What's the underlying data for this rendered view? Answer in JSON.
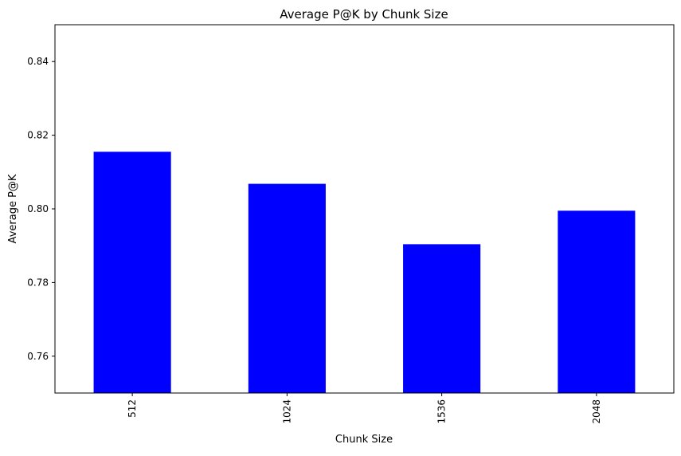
{
  "chart_data": {
    "type": "bar",
    "title": "Average P@K by Chunk Size",
    "xlabel": "Chunk Size",
    "ylabel": "Average P@K",
    "categories": [
      "512",
      "1024",
      "1536",
      "2048"
    ],
    "values": [
      0.8155,
      0.8068,
      0.7904,
      0.7995
    ],
    "ylim": [
      0.75,
      0.85
    ],
    "yticks": [
      0.76,
      0.78,
      0.8,
      0.82,
      0.84
    ],
    "ytick_labels": [
      "0.76",
      "0.78",
      "0.80",
      "0.82",
      "0.84"
    ],
    "bar_color": "#0000ff",
    "grid": false,
    "legend": false
  }
}
